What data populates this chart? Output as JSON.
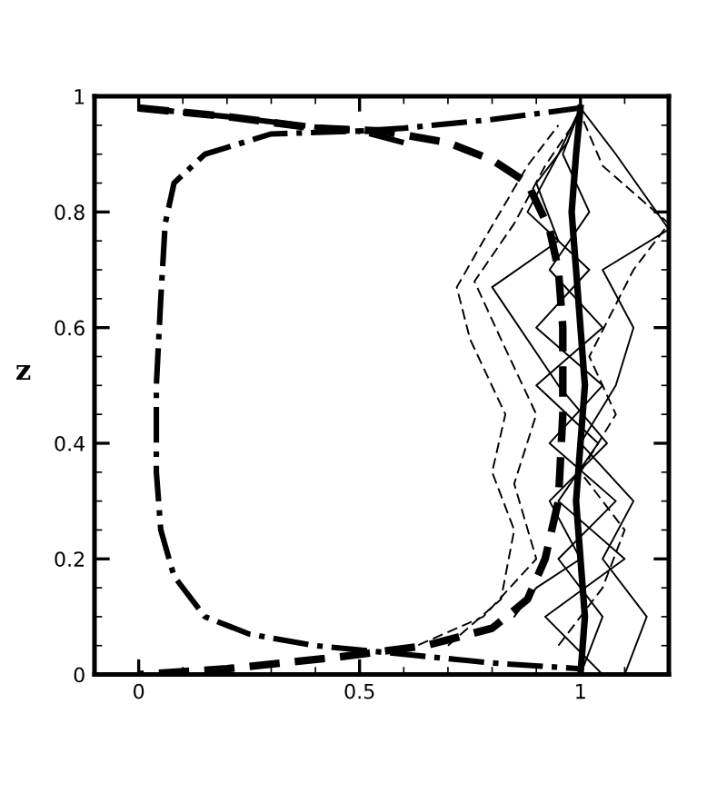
{
  "chart_data": {
    "type": "line",
    "ylabel": "z",
    "xlim": [
      -0.1,
      1.2
    ],
    "ylim": [
      0,
      1
    ],
    "xticks": [
      0,
      0.5,
      1
    ],
    "yticks": [
      0,
      0.2,
      0.4,
      0.6,
      0.8,
      1
    ],
    "grid": false,
    "legend": false,
    "marker": "none",
    "series": [
      {
        "color": "#000000",
        "line_style": "solid",
        "x": [
          1.0,
          1.01,
          1.0,
          0.99,
          1.0,
          1.01,
          1.0,
          0.99,
          0.98,
          0.99,
          1.0
        ],
        "values": [
          0.0,
          0.1,
          0.2,
          0.3,
          0.4,
          0.5,
          0.6,
          0.7,
          0.8,
          0.9,
          0.98
        ]
      },
      {
        "color": "#000000",
        "line_style": "dashdot",
        "x": [
          0,
          0.2,
          0.4,
          0.5,
          0.6,
          0.8,
          1.0
        ],
        "values": [
          0.98,
          0.965,
          0.947,
          0.94,
          0.945,
          0.96,
          0.98
        ]
      },
      {
        "color": "#000000",
        "line_style": "dashdot",
        "x": [
          0.6,
          0.5,
          0.3,
          0.15,
          0.08,
          0.06,
          0.05,
          0.04,
          0.04,
          0.05,
          0.08,
          0.15,
          0.25,
          0.4,
          0.6,
          0.8,
          1.0
        ],
        "values": [
          0.92,
          0.94,
          0.935,
          0.9,
          0.85,
          0.78,
          0.65,
          0.5,
          0.35,
          0.25,
          0.17,
          0.1,
          0.07,
          0.05,
          0.035,
          0.02,
          0.01
        ]
      },
      {
        "color": "#000000",
        "line_style": "dashed",
        "x": [
          0,
          0.2,
          0.4,
          0.55,
          0.7,
          0.8,
          0.88,
          0.93,
          0.95,
          0.96,
          0.96,
          0.95,
          0.92,
          0.88,
          0.8,
          0.65,
          0.45,
          0.2,
          0
        ],
        "values": [
          0.98,
          0.965,
          0.945,
          0.94,
          0.92,
          0.89,
          0.85,
          0.77,
          0.7,
          0.6,
          0.45,
          0.3,
          0.2,
          0.13,
          0.08,
          0.05,
          0.03,
          0.01,
          0
        ]
      },
      {
        "color": "#000000",
        "line_style": "solid",
        "x": [
          1.0,
          1.05,
          0.95,
          1.08,
          0.93,
          1.05,
          0.9,
          1.02,
          0.88,
          0.95,
          1.0
        ],
        "values": [
          0.0,
          0.1,
          0.2,
          0.3,
          0.4,
          0.5,
          0.6,
          0.7,
          0.8,
          0.9,
          0.98
        ]
      },
      {
        "color": "#000000",
        "line_style": "solid",
        "x": [
          1.1,
          1.15,
          1.05,
          1.12,
          1.0,
          1.08,
          1.12,
          1.05,
          1.2,
          1.08,
          1.0
        ],
        "values": [
          0.0,
          0.1,
          0.2,
          0.3,
          0.4,
          0.5,
          0.6,
          0.7,
          0.77,
          0.9,
          0.98
        ]
      },
      {
        "color": "#000000",
        "line_style": "solid",
        "x": [
          0.85,
          0.9,
          1.0,
          0.93,
          1.06,
          0.95,
          0.8,
          0.95,
          0.9,
          0.97,
          1.0
        ],
        "values": [
          0.1,
          0.15,
          0.2,
          0.3,
          0.4,
          0.5,
          0.67,
          0.75,
          0.85,
          0.92,
          0.98
        ]
      },
      {
        "color": "#000000",
        "line_style": "solid",
        "x": [
          1.05,
          0.92,
          1.1,
          0.95,
          1.04,
          0.9,
          1.05,
          0.93,
          1.02,
          0.96,
          1.0
        ],
        "values": [
          0.0,
          0.1,
          0.2,
          0.3,
          0.4,
          0.5,
          0.6,
          0.7,
          0.8,
          0.9,
          0.98
        ]
      },
      {
        "color": "#000000",
        "line_style": "dashed",
        "x": [
          0.7,
          0.82,
          0.85,
          0.8,
          0.83,
          0.75,
          0.72,
          0.78,
          0.88,
          0.95
        ],
        "values": [
          0.05,
          0.13,
          0.25,
          0.35,
          0.45,
          0.58,
          0.67,
          0.75,
          0.88,
          0.95
        ]
      },
      {
        "color": "#000000",
        "line_style": "dashed",
        "x": [
          0.6,
          0.78,
          0.9,
          0.85,
          0.9,
          0.82,
          0.76,
          0.85,
          0.92,
          1.0
        ],
        "values": [
          0.04,
          0.1,
          0.2,
          0.33,
          0.45,
          0.58,
          0.68,
          0.78,
          0.88,
          0.97
        ]
      },
      {
        "color": "#000000",
        "line_style": "dashed",
        "x": [
          0.95,
          1.05,
          1.1,
          1.0,
          1.08,
          1.02,
          1.12,
          1.2,
          1.05,
          1.0
        ],
        "values": [
          0.05,
          0.15,
          0.25,
          0.35,
          0.45,
          0.55,
          0.7,
          0.78,
          0.88,
          0.97
        ]
      }
    ]
  }
}
